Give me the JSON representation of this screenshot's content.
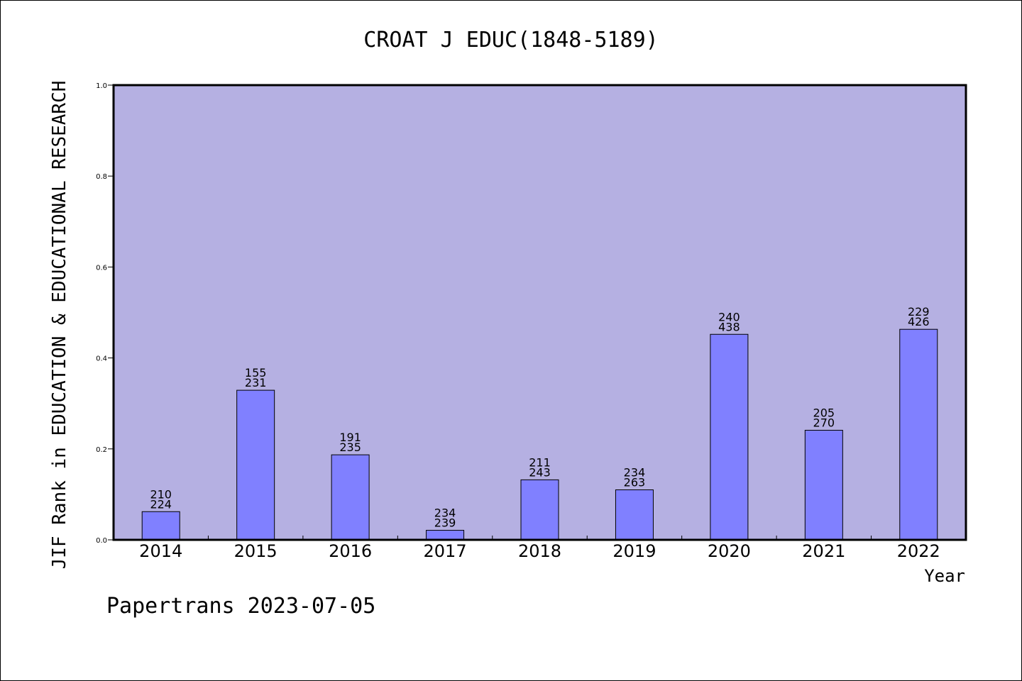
{
  "chart_data": {
    "type": "bar",
    "title": "CROAT J EDUC(1848-5189)",
    "ylabel": "JIF Rank in EDUCATION & EDUCATIONAL RESEARCH",
    "xlabel": "Year",
    "categories": [
      "2014",
      "2015",
      "2016",
      "2017",
      "2018",
      "2019",
      "2020",
      "2021",
      "2022"
    ],
    "values": [
      0.062,
      0.329,
      0.187,
      0.021,
      0.132,
      0.11,
      0.452,
      0.241,
      0.463
    ],
    "labels_top": [
      "210",
      "155",
      "191",
      "234",
      "211",
      "234",
      "240",
      "205",
      "229"
    ],
    "labels_bottom": [
      "224",
      "231",
      "235",
      "239",
      "243",
      "263",
      "438",
      "270",
      "426"
    ],
    "ylim": [
      0,
      1.0
    ],
    "yticks": [
      "0.0",
      "0.2",
      "0.4",
      "0.6",
      "0.8",
      "1.0"
    ],
    "grid": false,
    "colors": {
      "plot_bg": "#b5b0e2",
      "bar": "#8080ff",
      "bar_edge": "#000000"
    }
  },
  "footer": "Papertrans 2023-07-05"
}
